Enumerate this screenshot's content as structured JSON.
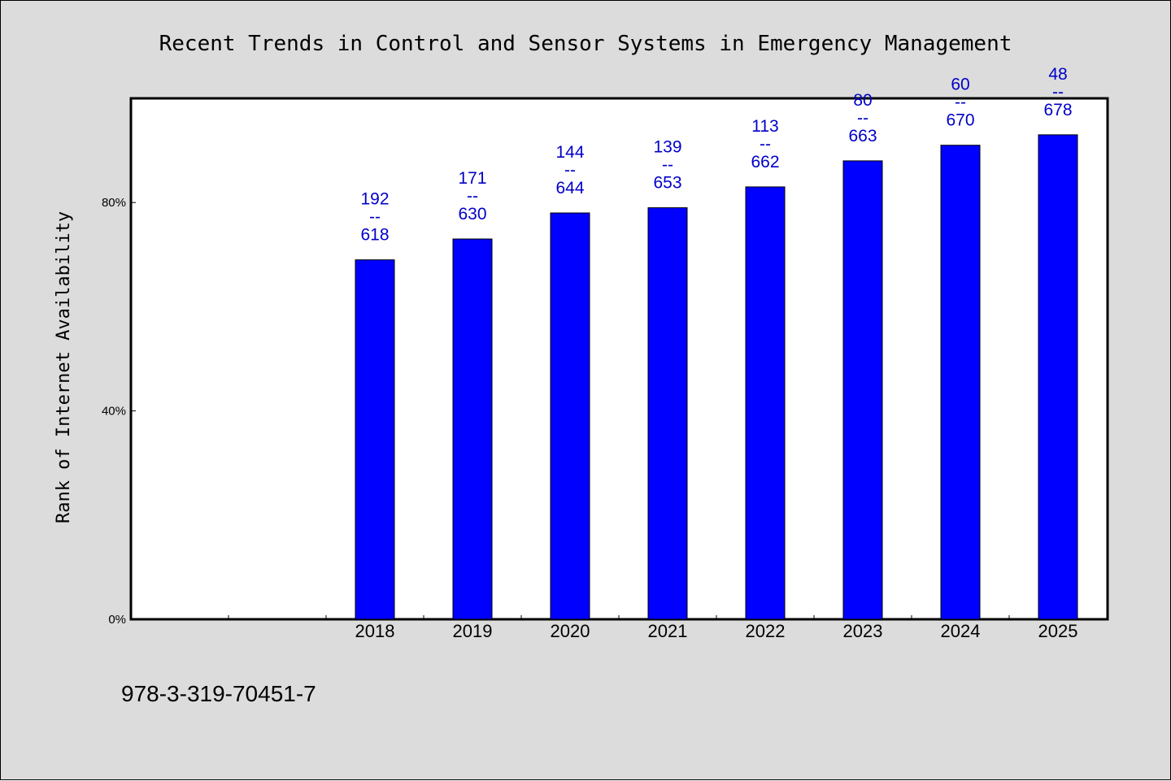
{
  "colors": {
    "background": "#dcdcdc",
    "plot_background": "#ffffff",
    "bar": "#0000ff",
    "data_label": "#0000c8"
  },
  "footer_text": "978-3-319-70451-7",
  "chart_data": {
    "type": "bar",
    "title": "Recent Trends in Control and Sensor Systems in Emergency Management",
    "xlabel": "",
    "ylabel": "Rank of Internet Availability",
    "categories": [
      "",
      "",
      "2018",
      "2019",
      "2020",
      "2021",
      "2022",
      "2023",
      "2024",
      "2025"
    ],
    "values": [
      null,
      null,
      69,
      73,
      78,
      79,
      83,
      88,
      91,
      93
    ],
    "ylim": [
      0,
      100
    ],
    "yticks": [
      0,
      40,
      80
    ],
    "ytick_labels": [
      "0%",
      "40%",
      "80%"
    ],
    "grid": false,
    "data_labels": [
      null,
      null,
      {
        "top": "192",
        "sep": "--",
        "bottom": "618"
      },
      {
        "top": "171",
        "sep": "--",
        "bottom": "630"
      },
      {
        "top": "144",
        "sep": "--",
        "bottom": "644"
      },
      {
        "top": "139",
        "sep": "--",
        "bottom": "653"
      },
      {
        "top": "113",
        "sep": "--",
        "bottom": "662"
      },
      {
        "top": "80",
        "sep": "--",
        "bottom": "663"
      },
      {
        "top": "60",
        "sep": "--",
        "bottom": "670"
      },
      {
        "top": "48",
        "sep": "--",
        "bottom": "678"
      }
    ]
  }
}
